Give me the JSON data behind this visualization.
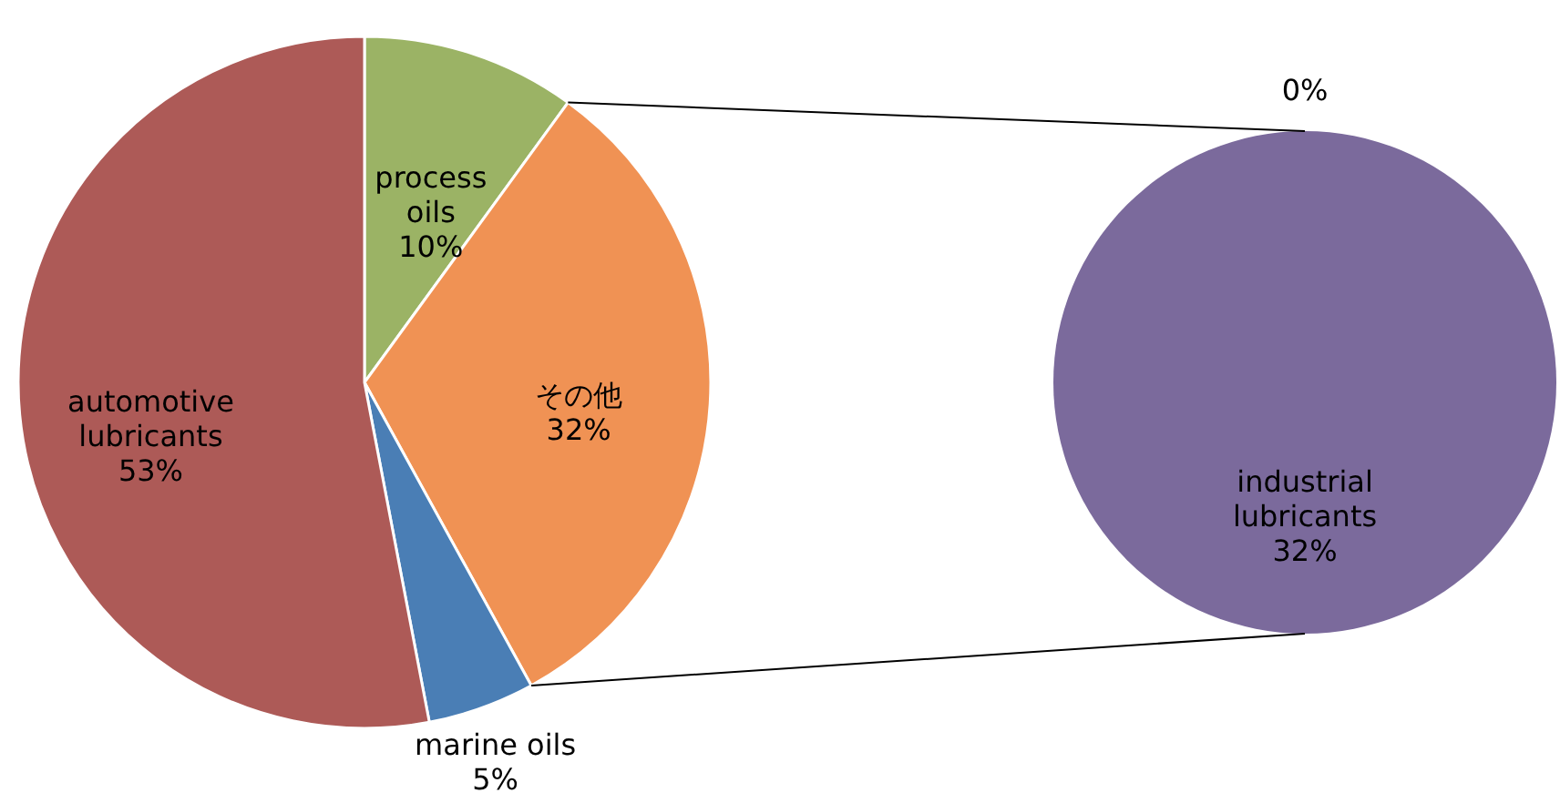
{
  "chart_data": [
    {
      "type": "pie",
      "categories": [
        "process oils",
        "その他",
        "marine oils",
        "automotive lubricants"
      ],
      "values": [
        10,
        32,
        5,
        53
      ],
      "colors": [
        "#9bb365",
        "#f09254",
        "#4a7eb5",
        "#ad5a57"
      ],
      "value_labels": [
        "10%",
        "32%",
        "5%",
        "53%"
      ]
    },
    {
      "type": "pie",
      "categories": [
        "industrial lubricants",
        null
      ],
      "values": [
        32,
        0
      ],
      "colors": [
        "#7b6a9c",
        "#c0c0c0"
      ],
      "value_labels": [
        "32%",
        "0%"
      ]
    }
  ]
}
